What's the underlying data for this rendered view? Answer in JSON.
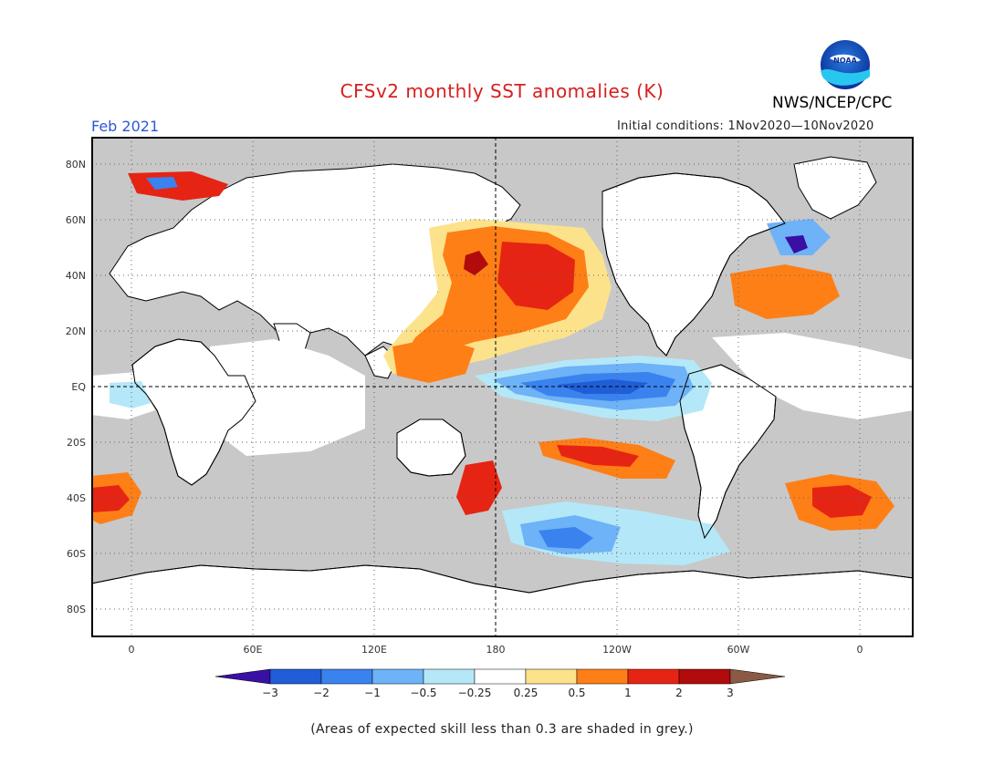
{
  "title": "CFSv2 monthly SST anomalies (K)",
  "agency": "NWS/NCEP/CPC",
  "logo_text": "NOAA",
  "period": "Feb 2021",
  "initial_conditions": "Initial conditions: 1Nov2020—10Nov2020",
  "map": {
    "lat_labels": [
      "80N",
      "60N",
      "40N",
      "20N",
      "EQ",
      "20S",
      "40S",
      "60S",
      "80S"
    ],
    "lon_labels": [
      "0",
      "60E",
      "120E",
      "180",
      "120W",
      "60W",
      "0"
    ],
    "colors": {
      "skill_grey": "#c8c8c8",
      "land": "#ffffff",
      "frame": "#000000"
    }
  },
  "colorbar": {
    "ticks": [
      "−3",
      "−2",
      "−1",
      "−0.5",
      "−0.25",
      "0.25",
      "0.5",
      "1",
      "2",
      "3"
    ],
    "colors": [
      "#3a0fa3",
      "#1f5ed6",
      "#3a82ee",
      "#6eb2f7",
      "#b4e8f8",
      "#ffffff",
      "#fde28c",
      "#fe7f16",
      "#e62414",
      "#b10b0b",
      "#8a5a44"
    ]
  },
  "footnote": "(Areas of expected skill less than 0.3 are shaded in grey.)"
}
